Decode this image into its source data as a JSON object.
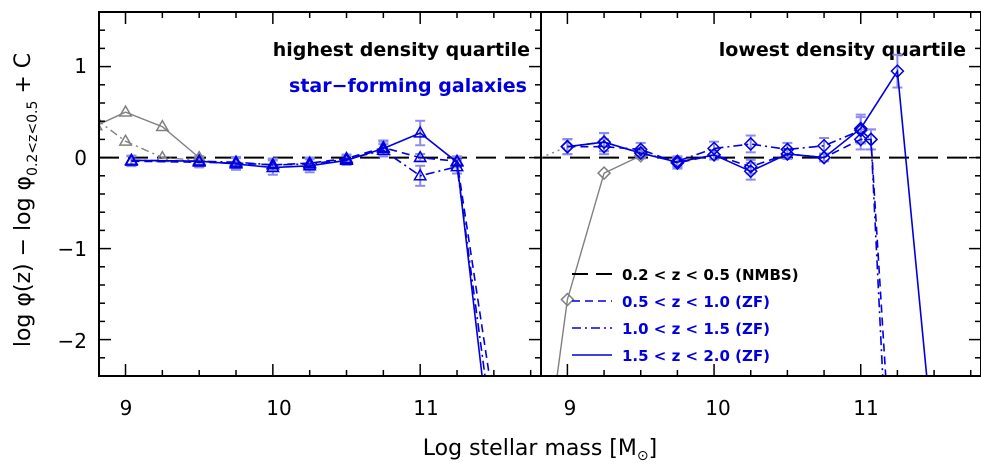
{
  "figure": {
    "ylabel_main": "log φ(z) − log φ",
    "ylabel_sub": "0.2<z<0.5",
    "ylabel_tail": " + C",
    "xlabel_main": "Log stellar mass [M",
    "xlabel_sym": "⊙",
    "xlabel_end": "]",
    "yticks": [
      "1",
      "0",
      "−1",
      "−2"
    ],
    "xticks_left": [
      "9",
      "10",
      "11"
    ],
    "xticks_right": [
      "9",
      "10",
      "11"
    ],
    "left_title": "highest density quartile",
    "left_subtitle": "star−forming galaxies",
    "right_title": "lowest density quartile",
    "legend": [
      {
        "label": "0.2 < z < 0.5 (NMBS)",
        "color": "#000000",
        "style": "dash"
      },
      {
        "label": "0.5 < z < 1.0 (ZF)",
        "color": "#0000dd",
        "style": "dash"
      },
      {
        "label": "1.0 < z < 1.5 (ZF)",
        "color": "#0000dd",
        "style": "dashdot"
      },
      {
        "label": "1.5 < z < 2.0 (ZF)",
        "color": "#0000dd",
        "style": "solid"
      }
    ],
    "colors": {
      "blue": "#0000dd",
      "gray": "#808080",
      "errbar": "#8c8cf0",
      "black": "#000000"
    }
  },
  "chart_data": [
    {
      "type": "line",
      "title": "highest density quartile",
      "subtitle": "star−forming galaxies",
      "xlabel": "Log stellar mass [M⊙]",
      "ylabel": "log φ(z) − log φ0.2<z<0.5 + C",
      "xlim": [
        8.82,
        11.82
      ],
      "ylim": [
        -2.4,
        1.6
      ],
      "reference_line": 0,
      "series": [
        {
          "key": "gray_solid",
          "x": [
            8.8,
            9.0,
            9.25,
            9.5
          ],
          "y": [
            0.35,
            0.5,
            0.34,
            0.0
          ]
        },
        {
          "key": "gray_dashdot",
          "x": [
            8.8,
            9.0,
            9.25,
            9.5
          ],
          "y": [
            0.42,
            0.18,
            0.0,
            -0.03
          ]
        },
        {
          "name": "0.5 < z < 1.0 (ZF)",
          "x": [
            9.04,
            9.5,
            9.75,
            10.0,
            10.25,
            10.5,
            10.75,
            11.0,
            11.25,
            11.47
          ],
          "y": [
            -0.04,
            -0.05,
            -0.06,
            -0.08,
            -0.06,
            -0.01,
            0.11,
            0.0,
            -0.04,
            -2.4
          ]
        },
        {
          "name": "1.0 < z < 1.5 (ZF)",
          "x": [
            9.04,
            9.5,
            9.75,
            10.0,
            10.25,
            10.5,
            10.75,
            11.0,
            11.25,
            11.44
          ],
          "y": [
            -0.03,
            -0.04,
            -0.05,
            -0.08,
            -0.07,
            -0.02,
            0.08,
            -0.2,
            -0.1,
            -2.4
          ]
        },
        {
          "name": "1.5 < z < 2.0 (ZF)",
          "x": [
            9.04,
            9.5,
            9.75,
            10.0,
            10.25,
            10.5,
            10.75,
            11.0,
            11.25,
            11.42
          ],
          "y": [
            -0.03,
            -0.04,
            -0.07,
            -0.11,
            -0.09,
            -0.03,
            0.1,
            0.27,
            -0.05,
            -2.4
          ]
        }
      ]
    },
    {
      "type": "line",
      "title": "lowest density quartile",
      "xlabel": "Log stellar mass [M⊙]",
      "xlim": [
        8.82,
        11.82
      ],
      "ylim": [
        -2.4,
        1.6
      ],
      "reference_line": 0,
      "series": [
        {
          "key": "gray_solid",
          "x": [
            8.93,
            9.0,
            9.25,
            9.5
          ],
          "y": [
            -2.4,
            -1.56,
            -0.17,
            0.02
          ]
        },
        {
          "key": "gray_dotted",
          "x": [
            8.82,
            9.0
          ],
          "y": [
            0.0,
            0.12
          ]
        },
        {
          "name": "0.5 < z < 1.0 (ZF)",
          "x": [
            9.0,
            9.25,
            9.5,
            9.75,
            10.0,
            10.25,
            10.5,
            10.75,
            11.0,
            11.07,
            11.17
          ],
          "y": [
            0.12,
            0.12,
            0.09,
            -0.06,
            0.03,
            -0.1,
            0.04,
            0.0,
            0.2,
            0.2,
            -2.4
          ]
        },
        {
          "name": "1.0 < z < 1.5 (ZF)",
          "x": [
            9.0,
            9.25,
            9.5,
            9.75,
            10.0,
            10.25,
            10.5,
            10.75,
            11.0,
            11.07,
            11.15
          ],
          "y": [
            0.12,
            0.17,
            0.05,
            -0.04,
            0.1,
            0.15,
            0.09,
            0.13,
            0.3,
            0.2,
            -2.4
          ]
        },
        {
          "name": "1.5 < z < 2.0 (ZF)",
          "x": [
            9.0,
            9.25,
            9.5,
            9.75,
            10.0,
            10.25,
            10.5,
            10.75,
            11.0,
            11.25,
            11.45
          ],
          "y": [
            0.12,
            0.17,
            0.05,
            -0.05,
            0.03,
            -0.15,
            0.04,
            0.0,
            0.32,
            0.95,
            -2.4
          ]
        }
      ]
    }
  ]
}
